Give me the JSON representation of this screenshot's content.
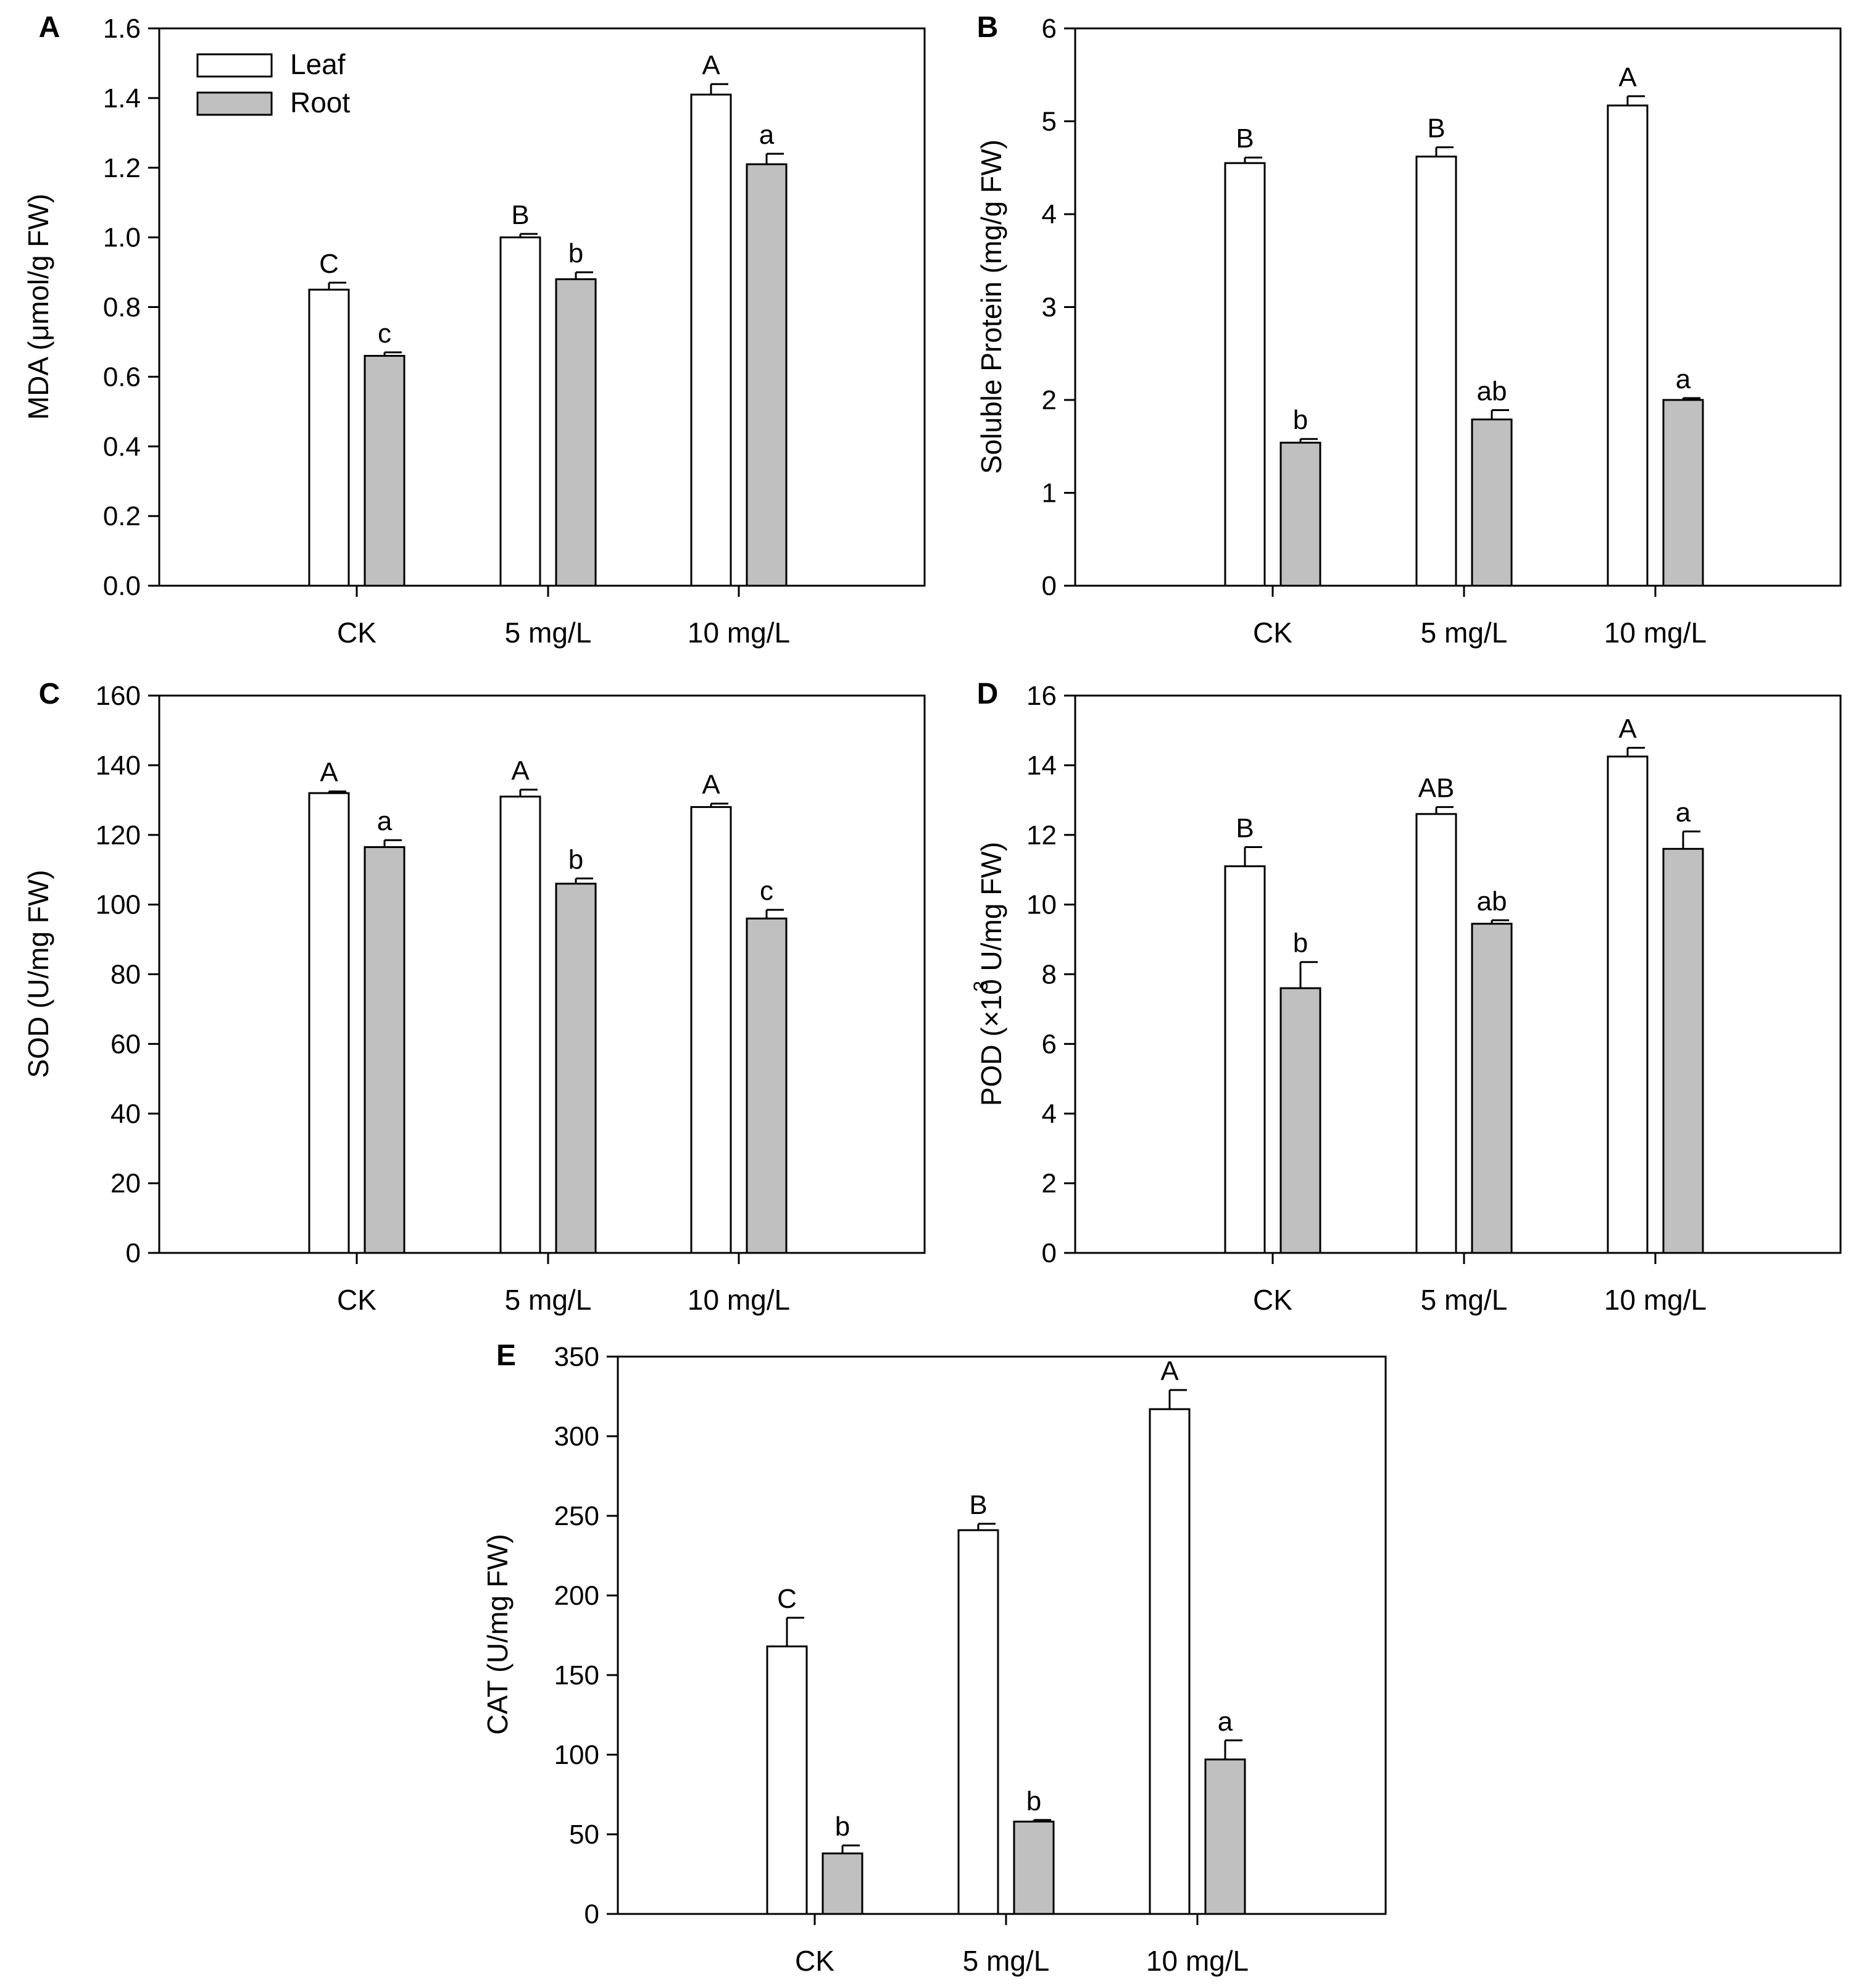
{
  "figure": {
    "legend": [
      {
        "label": "Leaf",
        "color": "#ffffff"
      },
      {
        "label": "Root",
        "color": "#c0c0c0"
      }
    ]
  },
  "chart_data": [
    {
      "panel": "A",
      "type": "bar",
      "ylabel": "MDA (μmol/g FW)",
      "categories": [
        "CK",
        "5 mg/L",
        "10 mg/L"
      ],
      "ylim": [
        0,
        1.6
      ],
      "ticks": [
        "0.0",
        "0.2",
        "0.4",
        "0.6",
        "0.8",
        "1.0",
        "1.2",
        "1.4",
        "1.6"
      ],
      "series": [
        {
          "name": "Leaf",
          "values": [
            0.85,
            1.0,
            1.41
          ],
          "errors": [
            0.02,
            0.01,
            0.03
          ],
          "labels": [
            "C",
            "B",
            "A"
          ]
        },
        {
          "name": "Root",
          "values": [
            0.66,
            0.88,
            1.21
          ],
          "errors": [
            0.01,
            0.02,
            0.03
          ],
          "labels": [
            "c",
            "b",
            "a"
          ]
        }
      ]
    },
    {
      "panel": "B",
      "type": "bar",
      "ylabel": "Soluble Protein (mg/g FW)",
      "categories": [
        "CK",
        "5 mg/L",
        "10 mg/L"
      ],
      "ylim": [
        0,
        6
      ],
      "ticks": [
        "0",
        "1",
        "2",
        "3",
        "4",
        "5",
        "6"
      ],
      "series": [
        {
          "name": "Leaf",
          "values": [
            4.55,
            4.62,
            5.17
          ],
          "errors": [
            0.06,
            0.1,
            0.1
          ],
          "labels": [
            "B",
            "B",
            "A"
          ]
        },
        {
          "name": "Root",
          "values": [
            1.54,
            1.79,
            2.0
          ],
          "errors": [
            0.04,
            0.1,
            0.02
          ],
          "labels": [
            "b",
            "ab",
            "a"
          ]
        }
      ]
    },
    {
      "panel": "C",
      "type": "bar",
      "ylabel": "SOD (U/mg FW)",
      "categories": [
        "CK",
        "5 mg/L",
        "10 mg/L"
      ],
      "ylim": [
        0,
        160
      ],
      "ticks": [
        "0",
        "20",
        "40",
        "60",
        "80",
        "100",
        "120",
        "140",
        "160"
      ],
      "series": [
        {
          "name": "Leaf",
          "values": [
            132,
            131,
            128
          ],
          "errors": [
            0.5,
            2,
            1
          ],
          "labels": [
            "A",
            "A",
            "A"
          ]
        },
        {
          "name": "Root",
          "values": [
            116.5,
            106,
            96
          ],
          "errors": [
            2,
            1.5,
            2.5
          ],
          "labels": [
            "a",
            "b",
            "c"
          ]
        }
      ]
    },
    {
      "panel": "D",
      "type": "bar",
      "ylabel": "POD (×10  U/mg FW)",
      "ylabel_superscript": "3",
      "categories": [
        "CK",
        "5 mg/L",
        "10 mg/L"
      ],
      "ylim": [
        0,
        16
      ],
      "ticks": [
        "0",
        "2",
        "4",
        "6",
        "8",
        "10",
        "12",
        "14",
        "16"
      ],
      "series": [
        {
          "name": "Leaf",
          "values": [
            11.1,
            12.6,
            14.25
          ],
          "errors": [
            0.55,
            0.2,
            0.25
          ],
          "labels": [
            "B",
            "AB",
            "A"
          ]
        },
        {
          "name": "Root",
          "values": [
            7.6,
            9.45,
            11.6
          ],
          "errors": [
            0.75,
            0.1,
            0.5
          ],
          "labels": [
            "b",
            "ab",
            "a"
          ]
        }
      ]
    },
    {
      "panel": "E",
      "type": "bar",
      "ylabel": "CAT (U/mg FW)",
      "categories": [
        "CK",
        "5 mg/L",
        "10 mg/L"
      ],
      "ylim": [
        0,
        350
      ],
      "ticks": [
        "0",
        "50",
        "100",
        "150",
        "200",
        "250",
        "300",
        "350"
      ],
      "series": [
        {
          "name": "Leaf",
          "values": [
            168,
            241,
            317
          ],
          "errors": [
            18,
            4,
            12
          ],
          "labels": [
            "C",
            "B",
            "A"
          ]
        },
        {
          "name": "Root",
          "values": [
            38,
            58,
            97
          ],
          "errors": [
            5,
            1,
            12
          ],
          "labels": [
            "b",
            "b",
            "a"
          ]
        }
      ]
    }
  ]
}
